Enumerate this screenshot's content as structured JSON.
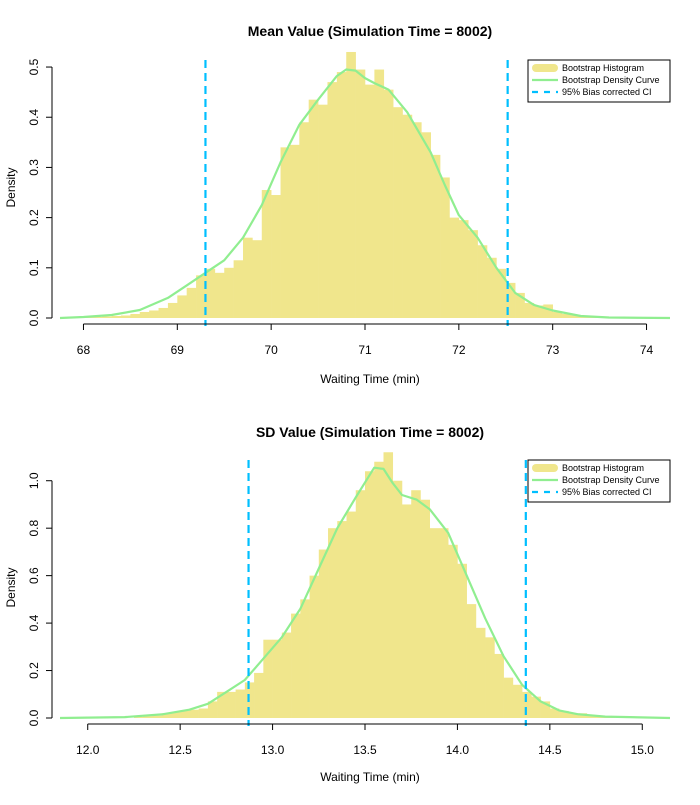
{
  "chart_data": [
    {
      "type": "bar",
      "title": "Mean Value (Simulation Time = 8002)",
      "xlabel": "Waiting Time (min)",
      "ylabel": "Density",
      "xlim": [
        67.75,
        74.25
      ],
      "ylim": [
        0,
        0.52
      ],
      "xticks": [
        "68",
        "69",
        "70",
        "71",
        "72",
        "73",
        "74"
      ],
      "yticks": [
        "0.0",
        "0.1",
        "0.2",
        "0.3",
        "0.4",
        "0.5"
      ],
      "grid": false,
      "legend_position": "top-right",
      "legend": [
        {
          "label": "Bootstrap Histogram",
          "kind": "fill",
          "color": "#F0E68C"
        },
        {
          "label": "Bootstrap Density Curve",
          "kind": "line",
          "color": "#90EE90"
        },
        {
          "label": "95% Bias corrected CI",
          "kind": "dashed",
          "color": "#00BFFF"
        }
      ],
      "histogram": {
        "bin_width": 0.1,
        "bins": [
          {
            "x": 67.8,
            "y": 0.001
          },
          {
            "x": 67.9,
            "y": 0.001
          },
          {
            "x": 68.0,
            "y": 0.001
          },
          {
            "x": 68.1,
            "y": 0.002
          },
          {
            "x": 68.2,
            "y": 0.003
          },
          {
            "x": 68.3,
            "y": 0.004
          },
          {
            "x": 68.4,
            "y": 0.005
          },
          {
            "x": 68.5,
            "y": 0.008
          },
          {
            "x": 68.6,
            "y": 0.012
          },
          {
            "x": 68.7,
            "y": 0.015
          },
          {
            "x": 68.8,
            "y": 0.02
          },
          {
            "x": 68.9,
            "y": 0.03
          },
          {
            "x": 69.0,
            "y": 0.045
          },
          {
            "x": 69.1,
            "y": 0.06
          },
          {
            "x": 69.2,
            "y": 0.085
          },
          {
            "x": 69.3,
            "y": 0.098
          },
          {
            "x": 69.4,
            "y": 0.09
          },
          {
            "x": 69.5,
            "y": 0.1
          },
          {
            "x": 69.6,
            "y": 0.115
          },
          {
            "x": 69.7,
            "y": 0.16
          },
          {
            "x": 69.8,
            "y": 0.155
          },
          {
            "x": 69.9,
            "y": 0.255
          },
          {
            "x": 70.0,
            "y": 0.245
          },
          {
            "x": 70.1,
            "y": 0.34
          },
          {
            "x": 70.2,
            "y": 0.345
          },
          {
            "x": 70.3,
            "y": 0.39
          },
          {
            "x": 70.4,
            "y": 0.435
          },
          {
            "x": 70.5,
            "y": 0.425
          },
          {
            "x": 70.6,
            "y": 0.47
          },
          {
            "x": 70.7,
            "y": 0.49
          },
          {
            "x": 70.8,
            "y": 0.53
          },
          {
            "x": 70.9,
            "y": 0.495
          },
          {
            "x": 71.0,
            "y": 0.465
          },
          {
            "x": 71.1,
            "y": 0.495
          },
          {
            "x": 71.2,
            "y": 0.455
          },
          {
            "x": 71.3,
            "y": 0.42
          },
          {
            "x": 71.4,
            "y": 0.405
          },
          {
            "x": 71.5,
            "y": 0.39
          },
          {
            "x": 71.6,
            "y": 0.37
          },
          {
            "x": 71.7,
            "y": 0.325
          },
          {
            "x": 71.8,
            "y": 0.28
          },
          {
            "x": 71.9,
            "y": 0.2
          },
          {
            "x": 72.0,
            "y": 0.195
          },
          {
            "x": 72.1,
            "y": 0.175
          },
          {
            "x": 72.2,
            "y": 0.145
          },
          {
            "x": 72.3,
            "y": 0.12
          },
          {
            "x": 72.4,
            "y": 0.098
          },
          {
            "x": 72.5,
            "y": 0.07
          },
          {
            "x": 72.6,
            "y": 0.05
          },
          {
            "x": 72.7,
            "y": 0.03
          },
          {
            "x": 72.8,
            "y": 0.025
          },
          {
            "x": 72.9,
            "y": 0.027
          },
          {
            "x": 73.0,
            "y": 0.012
          },
          {
            "x": 73.1,
            "y": 0.008
          },
          {
            "x": 73.2,
            "y": 0.005
          },
          {
            "x": 73.3,
            "y": 0.003
          },
          {
            "x": 73.4,
            "y": 0.002
          },
          {
            "x": 73.5,
            "y": 0.001
          },
          {
            "x": 73.6,
            "y": 0.001
          }
        ]
      },
      "density_curve": [
        {
          "x": 67.75,
          "y": 0.0
        },
        {
          "x": 68.0,
          "y": 0.002
        },
        {
          "x": 68.3,
          "y": 0.006
        },
        {
          "x": 68.6,
          "y": 0.016
        },
        {
          "x": 68.9,
          "y": 0.04
        },
        {
          "x": 69.1,
          "y": 0.065
        },
        {
          "x": 69.3,
          "y": 0.09
        },
        {
          "x": 69.5,
          "y": 0.115
        },
        {
          "x": 69.7,
          "y": 0.16
        },
        {
          "x": 69.9,
          "y": 0.225
        },
        {
          "x": 70.1,
          "y": 0.31
        },
        {
          "x": 70.3,
          "y": 0.385
        },
        {
          "x": 70.5,
          "y": 0.435
        },
        {
          "x": 70.7,
          "y": 0.482
        },
        {
          "x": 70.8,
          "y": 0.495
        },
        {
          "x": 70.9,
          "y": 0.493
        },
        {
          "x": 71.0,
          "y": 0.478
        },
        {
          "x": 71.1,
          "y": 0.468
        },
        {
          "x": 71.25,
          "y": 0.455
        },
        {
          "x": 71.45,
          "y": 0.41
        },
        {
          "x": 71.7,
          "y": 0.33
        },
        {
          "x": 71.85,
          "y": 0.265
        },
        {
          "x": 72.0,
          "y": 0.205
        },
        {
          "x": 72.2,
          "y": 0.16
        },
        {
          "x": 72.4,
          "y": 0.1
        },
        {
          "x": 72.6,
          "y": 0.05
        },
        {
          "x": 72.8,
          "y": 0.026
        },
        {
          "x": 73.0,
          "y": 0.015
        },
        {
          "x": 73.3,
          "y": 0.004
        },
        {
          "x": 73.6,
          "y": 0.001
        },
        {
          "x": 74.25,
          "y": 0.0
        }
      ],
      "ci": [
        69.3,
        72.52
      ]
    },
    {
      "type": "bar",
      "title": "SD Value (Simulation Time = 8002)",
      "xlabel": "Waiting Time (min)",
      "ylabel": "Density",
      "xlim": [
        11.85,
        15.15
      ],
      "ylim": [
        0,
        1.1
      ],
      "xticks": [
        "12.0",
        "12.5",
        "13.0",
        "13.5",
        "14.0",
        "14.5",
        "15.0"
      ],
      "yticks": [
        "0.0",
        "0.2",
        "0.4",
        "0.6",
        "0.8",
        "1.0"
      ],
      "grid": false,
      "legend_position": "top-right",
      "legend": [
        {
          "label": "Bootstrap Histogram",
          "kind": "fill",
          "color": "#F0E68C"
        },
        {
          "label": "Bootstrap Density Curve",
          "kind": "line",
          "color": "#90EE90"
        },
        {
          "label": "95% Bias corrected CI",
          "kind": "dashed",
          "color": "#00BFFF"
        }
      ],
      "histogram": {
        "bin_width": 0.05,
        "bins": [
          {
            "x": 12.25,
            "y": 0.005
          },
          {
            "x": 12.3,
            "y": 0.008
          },
          {
            "x": 12.35,
            "y": 0.01
          },
          {
            "x": 12.4,
            "y": 0.02
          },
          {
            "x": 12.45,
            "y": 0.025
          },
          {
            "x": 12.5,
            "y": 0.03
          },
          {
            "x": 12.55,
            "y": 0.035
          },
          {
            "x": 12.6,
            "y": 0.04
          },
          {
            "x": 12.65,
            "y": 0.07
          },
          {
            "x": 12.7,
            "y": 0.11
          },
          {
            "x": 12.75,
            "y": 0.11
          },
          {
            "x": 12.8,
            "y": 0.12
          },
          {
            "x": 12.85,
            "y": 0.15
          },
          {
            "x": 12.9,
            "y": 0.19
          },
          {
            "x": 12.95,
            "y": 0.33
          },
          {
            "x": 13.0,
            "y": 0.33
          },
          {
            "x": 13.05,
            "y": 0.36
          },
          {
            "x": 13.1,
            "y": 0.44
          },
          {
            "x": 13.15,
            "y": 0.5
          },
          {
            "x": 13.2,
            "y": 0.6
          },
          {
            "x": 13.25,
            "y": 0.71
          },
          {
            "x": 13.3,
            "y": 0.8
          },
          {
            "x": 13.35,
            "y": 0.83
          },
          {
            "x": 13.4,
            "y": 0.87
          },
          {
            "x": 13.45,
            "y": 0.96
          },
          {
            "x": 13.5,
            "y": 1.04
          },
          {
            "x": 13.55,
            "y": 1.08
          },
          {
            "x": 13.6,
            "y": 1.12
          },
          {
            "x": 13.65,
            "y": 1.0
          },
          {
            "x": 13.7,
            "y": 0.9
          },
          {
            "x": 13.75,
            "y": 0.96
          },
          {
            "x": 13.8,
            "y": 0.92
          },
          {
            "x": 13.85,
            "y": 0.8
          },
          {
            "x": 13.9,
            "y": 0.8
          },
          {
            "x": 13.95,
            "y": 0.73
          },
          {
            "x": 14.0,
            "y": 0.65
          },
          {
            "x": 14.05,
            "y": 0.48
          },
          {
            "x": 14.1,
            "y": 0.38
          },
          {
            "x": 14.15,
            "y": 0.34
          },
          {
            "x": 14.2,
            "y": 0.27
          },
          {
            "x": 14.25,
            "y": 0.17
          },
          {
            "x": 14.3,
            "y": 0.14
          },
          {
            "x": 14.35,
            "y": 0.11
          },
          {
            "x": 14.4,
            "y": 0.09
          },
          {
            "x": 14.45,
            "y": 0.07
          },
          {
            "x": 14.5,
            "y": 0.04
          },
          {
            "x": 14.55,
            "y": 0.03
          },
          {
            "x": 14.6,
            "y": 0.02
          },
          {
            "x": 14.65,
            "y": 0.02
          },
          {
            "x": 14.7,
            "y": 0.01
          },
          {
            "x": 14.75,
            "y": 0.008
          },
          {
            "x": 14.8,
            "y": 0.005
          }
        ]
      },
      "density_curve": [
        {
          "x": 11.85,
          "y": 0.0
        },
        {
          "x": 12.2,
          "y": 0.004
        },
        {
          "x": 12.4,
          "y": 0.015
        },
        {
          "x": 12.55,
          "y": 0.035
        },
        {
          "x": 12.65,
          "y": 0.06
        },
        {
          "x": 12.75,
          "y": 0.11
        },
        {
          "x": 12.85,
          "y": 0.16
        },
        {
          "x": 12.95,
          "y": 0.25
        },
        {
          "x": 13.05,
          "y": 0.34
        },
        {
          "x": 13.15,
          "y": 0.46
        },
        {
          "x": 13.25,
          "y": 0.63
        },
        {
          "x": 13.35,
          "y": 0.8
        },
        {
          "x": 13.45,
          "y": 0.93
        },
        {
          "x": 13.55,
          "y": 1.055
        },
        {
          "x": 13.6,
          "y": 1.05
        },
        {
          "x": 13.65,
          "y": 0.99
        },
        {
          "x": 13.7,
          "y": 0.94
        },
        {
          "x": 13.78,
          "y": 0.92
        },
        {
          "x": 13.85,
          "y": 0.88
        },
        {
          "x": 13.95,
          "y": 0.78
        },
        {
          "x": 14.05,
          "y": 0.6
        },
        {
          "x": 14.15,
          "y": 0.42
        },
        {
          "x": 14.25,
          "y": 0.26
        },
        {
          "x": 14.35,
          "y": 0.14
        },
        {
          "x": 14.45,
          "y": 0.07
        },
        {
          "x": 14.55,
          "y": 0.032
        },
        {
          "x": 14.65,
          "y": 0.016
        },
        {
          "x": 14.8,
          "y": 0.006
        },
        {
          "x": 15.15,
          "y": 0.0
        }
      ],
      "ci": [
        12.87,
        14.37
      ]
    }
  ]
}
